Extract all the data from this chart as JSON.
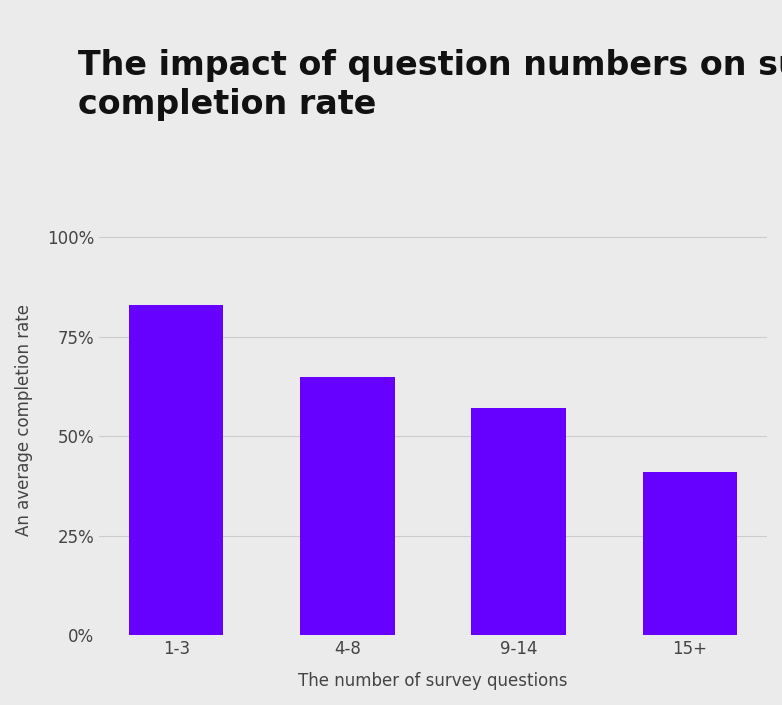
{
  "title_line1": "The impact of question numbers on survey",
  "title_line2": "completion rate",
  "xlabel": "The number of survey questions",
  "ylabel": "An average completion rate",
  "categories": [
    "1-3",
    "4-8",
    "9-14",
    "15+"
  ],
  "values": [
    0.83,
    0.65,
    0.57,
    0.41
  ],
  "bar_color": "#6600FF",
  "background_color": "#EBEBEB",
  "yticks": [
    0,
    0.25,
    0.5,
    0.75,
    1.0
  ],
  "ytick_labels": [
    "0%",
    "25%",
    "50%",
    "75%",
    "100%"
  ],
  "ylim": [
    0,
    1.08
  ],
  "title_fontsize": 24,
  "axis_label_fontsize": 12,
  "tick_fontsize": 12,
  "grid_color": "#CCCCCC",
  "title_color": "#111111",
  "tick_color": "#444444"
}
